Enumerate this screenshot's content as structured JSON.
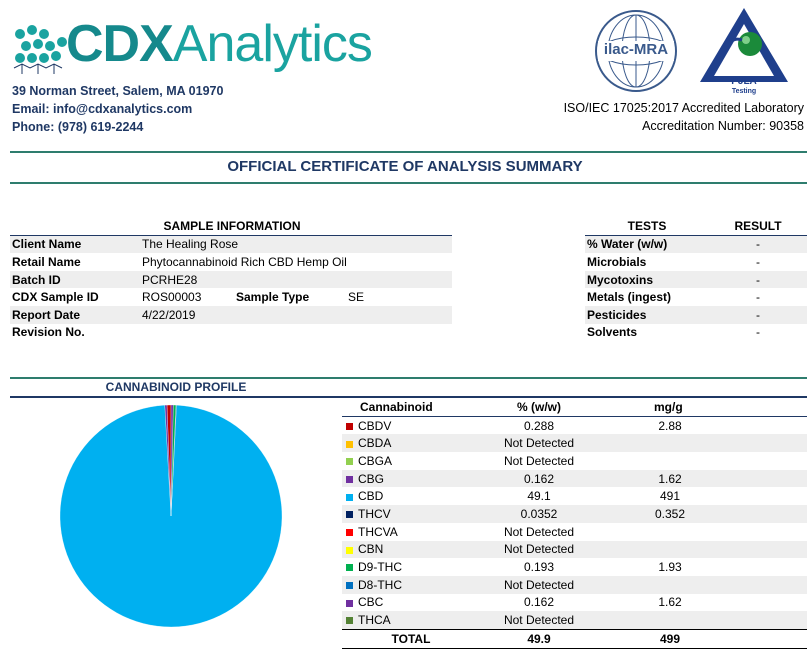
{
  "header": {
    "logo_cdx": "CDX",
    "logo_analytics": "Analytics",
    "address": "39 Norman Street, Salem, MA 01970",
    "email": "Email: info@cdxanalytics.com",
    "phone": "Phone: (978) 619-2244",
    "ilac_text": "ilac-MRA",
    "pjla_text": "PJLA",
    "pjla_sub": "Testing",
    "accreditation_line1": "ISO/IEC 17025:2017 Accredited Laboratory",
    "accreditation_line2": "Accreditation Number: 90358"
  },
  "title": "OFFICIAL CERTIFICATE OF ANALYSIS SUMMARY",
  "sample": {
    "heading": "SAMPLE INFORMATION",
    "rows": [
      {
        "label": "Client Name",
        "value": "The Healing Rose"
      },
      {
        "label": "Retail Name",
        "value": "Phytocannabinoid Rich CBD Hemp Oil"
      },
      {
        "label": "Batch ID",
        "value": "PCRHE28"
      },
      {
        "label": "CDX Sample ID",
        "value": "ROS00003",
        "label2": "Sample Type",
        "value2": "SE"
      },
      {
        "label": "Report Date",
        "value": "4/22/2019"
      },
      {
        "label": "Revision No.",
        "value": ""
      }
    ]
  },
  "tests": {
    "col_tests": "TESTS",
    "col_result": "RESULT",
    "rows": [
      {
        "test": "% Water (w/w)",
        "result": "-"
      },
      {
        "test": "Microbials",
        "result": "-"
      },
      {
        "test": "Mycotoxins",
        "result": "-"
      },
      {
        "test": "Metals (ingest)",
        "result": "-"
      },
      {
        "test": "Pesticides",
        "result": "-"
      },
      {
        "test": "Solvents",
        "result": "-"
      }
    ]
  },
  "profile": {
    "heading": "CANNABINOID PROFILE",
    "col_cannabinoid": "Cannabinoid",
    "col_pct": "% (w/w)",
    "col_mg": "mg/g",
    "total_label": "TOTAL",
    "total_pct": "49.9",
    "total_mg": "499"
  },
  "chart_data": {
    "type": "pie",
    "title": "",
    "categories": [
      "CBDV",
      "CBDA",
      "CBGA",
      "CBG",
      "CBD",
      "THCV",
      "THCVA",
      "CBN",
      "D9-THC",
      "D8-THC",
      "CBC",
      "THCA"
    ],
    "pct_display": [
      "0.288",
      "Not Detected",
      "Not Detected",
      "0.162",
      "49.1",
      "0.0352",
      "Not Detected",
      "Not Detected",
      "0.193",
      "Not Detected",
      "0.162",
      "Not Detected"
    ],
    "mg_display": [
      "2.88",
      "",
      "",
      "1.62",
      "491",
      "0.352",
      "",
      "",
      "1.93",
      "",
      "1.62",
      ""
    ],
    "values": [
      0.288,
      0,
      0,
      0.162,
      49.1,
      0.0352,
      0,
      0,
      0.193,
      0,
      0.162,
      0
    ],
    "colors": [
      "#c00000",
      "#ffc000",
      "#92d050",
      "#7030a0",
      "#00b0f0",
      "#002060",
      "#ff0000",
      "#ffff00",
      "#00b050",
      "#0070c0",
      "#7030a0",
      "#548235"
    ]
  }
}
